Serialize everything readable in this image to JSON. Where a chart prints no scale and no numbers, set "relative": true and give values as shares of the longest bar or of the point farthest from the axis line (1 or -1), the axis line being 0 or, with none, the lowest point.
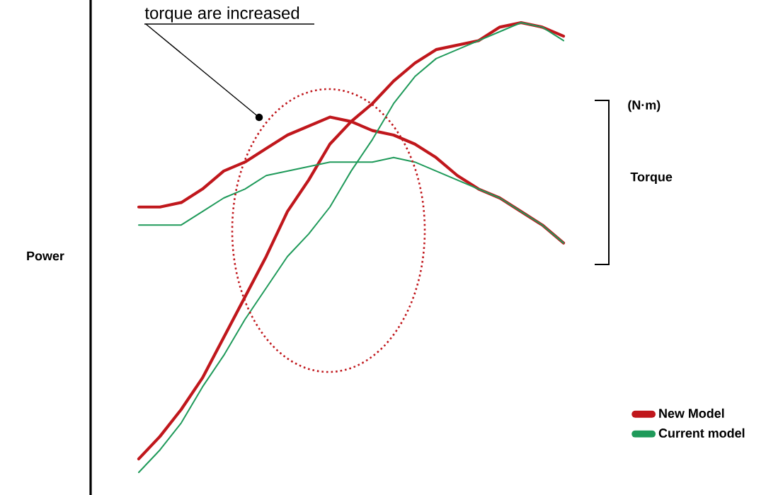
{
  "chart_data": {
    "type": "line",
    "relative": true,
    "categories": [
      null,
      null,
      null,
      null,
      null,
      null,
      null,
      null,
      null,
      null,
      null,
      null,
      null,
      null,
      null,
      null,
      null,
      null,
      null,
      null,
      null
    ],
    "series": [
      {
        "name": "New Model",
        "color": "#c0171c",
        "values": [
          0.03,
          0.08,
          0.14,
          0.21,
          0.3,
          0.39,
          0.48,
          0.58,
          0.65,
          0.73,
          0.78,
          0.82,
          0.87,
          0.91,
          0.94,
          0.95,
          0.96,
          0.99,
          1,
          0.99,
          0.97
        ]
      },
      {
        "color": "#c0171c",
        "values": [
          0.59,
          0.59,
          0.6,
          0.63,
          0.67,
          0.69,
          0.72,
          0.75,
          0.77,
          0.79,
          0.78,
          0.76,
          0.75,
          0.73,
          0.7,
          0.66,
          0.63,
          0.61,
          0.58,
          0.55,
          0.51
        ]
      },
      {
        "name": "Current model",
        "color": "#1f9a5a",
        "values": [
          0,
          0.05,
          0.11,
          0.19,
          0.26,
          0.34,
          0.41,
          0.48,
          0.53,
          0.59,
          0.67,
          0.74,
          0.82,
          0.88,
          0.92,
          0.94,
          0.96,
          0.98,
          1,
          0.99,
          0.96
        ]
      },
      {
        "color": "#1f9a5a",
        "values": [
          0.55,
          0.55,
          0.55,
          0.58,
          0.61,
          0.63,
          0.66,
          0.67,
          0.68,
          0.69,
          0.69,
          0.69,
          0.7,
          0.69,
          0.67,
          0.65,
          0.63,
          0.61,
          0.58,
          0.55,
          0.51
        ]
      }
    ],
    "legend": "bottom right",
    "annotations": [
      "torque are increased",
      "(N·m)",
      "Torque",
      "Power"
    ]
  }
}
